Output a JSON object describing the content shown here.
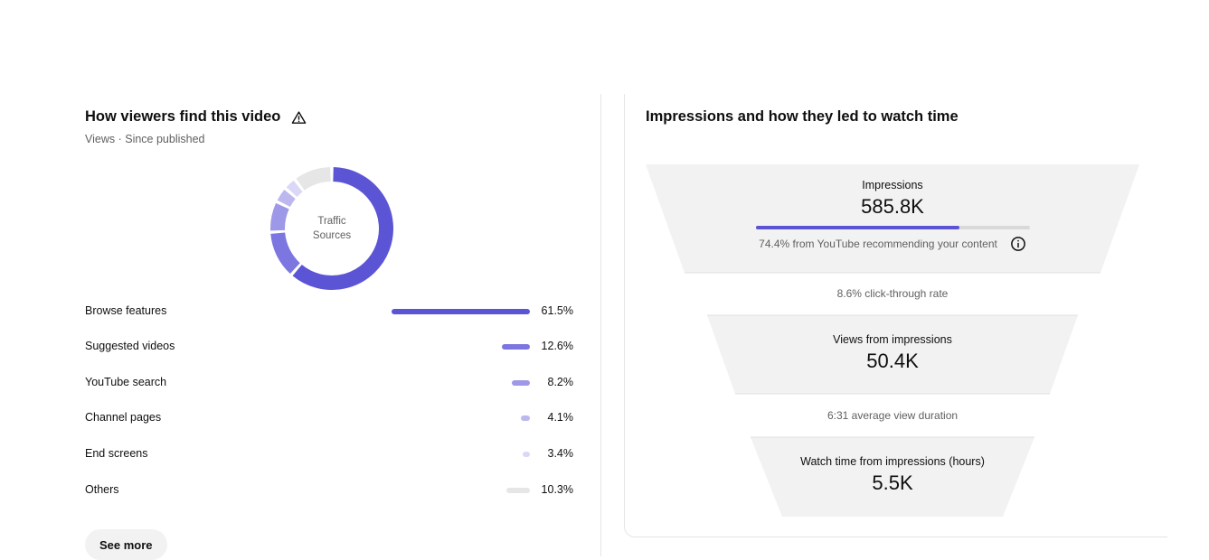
{
  "traffic": {
    "title": "How viewers find this video",
    "subtitle": "Views · Since published",
    "donut_center": [
      "Traffic",
      "Sources"
    ],
    "sources": [
      {
        "label": "Browse features",
        "percent_text": "61.5%",
        "percent": 61.5,
        "color": "#5b55d6"
      },
      {
        "label": "Suggested videos",
        "percent_text": "12.6%",
        "percent": 12.6,
        "color": "#7c76e0"
      },
      {
        "label": "YouTube search",
        "percent_text": "8.2%",
        "percent": 8.2,
        "color": "#9d98e8"
      },
      {
        "label": "Channel pages",
        "percent_text": "4.1%",
        "percent": 4.1,
        "color": "#bcb8ef"
      },
      {
        "label": "End screens",
        "percent_text": "3.4%",
        "percent": 3.4,
        "color": "#dad8f6"
      },
      {
        "label": "Others",
        "percent_text": "10.3%",
        "percent": 10.3,
        "color": "#e6e6e6"
      }
    ],
    "see_more_label": "See more"
  },
  "impressions": {
    "title": "Impressions and how they led to watch time",
    "impressions_label": "Impressions",
    "impressions_value": "585.8K",
    "recommend_fraction": 0.744,
    "recommend_text": "74.4% from YouTube recommending your content",
    "ctr_text": "8.6% click-through rate",
    "views_label": "Views from impressions",
    "views_value": "50.4K",
    "avd_text": "6:31 average view duration",
    "watch_label": "Watch time from impressions (hours)",
    "watch_value": "5.5K"
  },
  "icons": {
    "warning": "warning-triangle-icon",
    "info": "info-icon"
  }
}
